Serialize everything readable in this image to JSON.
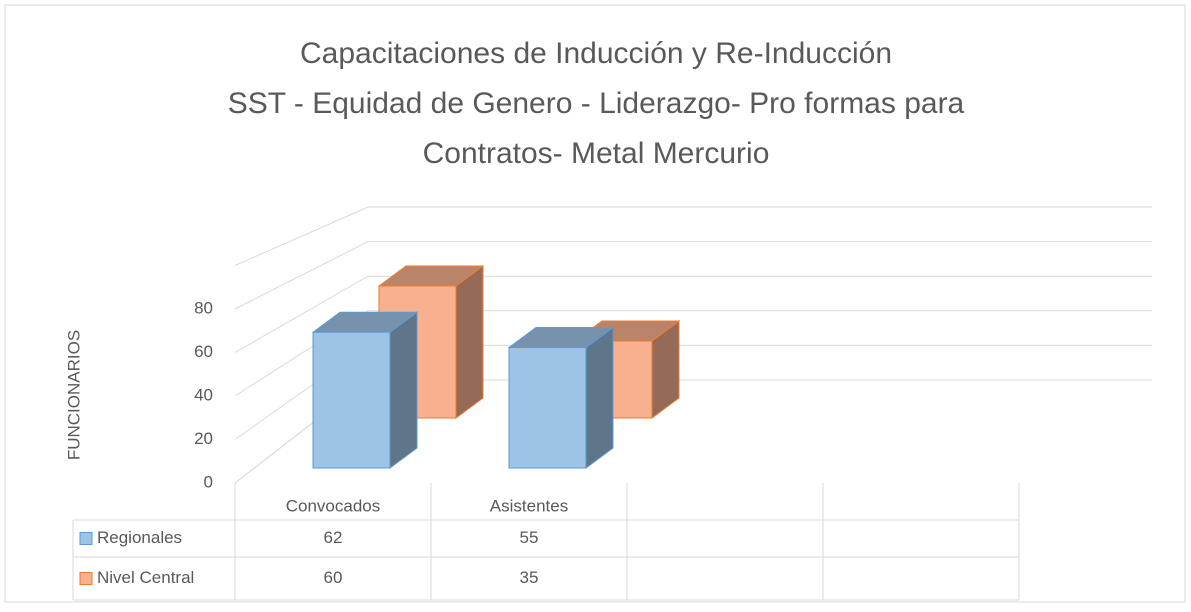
{
  "chart_data": {
    "type": "bar3d",
    "title": [
      "Capacitaciones de Inducción y Re-Inducción",
      "SST - Equidad de Genero - Liderazgo-  Pro formas para",
      "Contratos- Metal Mercurio"
    ],
    "y_label": "FUNCIONARIOS",
    "categories": [
      "Convocados",
      "Asistentes",
      null,
      null
    ],
    "series": [
      {
        "name": "Regionales",
        "color": "#9dc3e6",
        "values": [
          62,
          55,
          null,
          null
        ]
      },
      {
        "name": "Nivel Central",
        "color": "#f8b08f",
        "values": [
          60,
          35,
          null,
          null
        ]
      }
    ],
    "ylim": [
      0,
      100
    ],
    "yticks": [
      0,
      20,
      40,
      60,
      80
    ],
    "grid": true,
    "data_table": true
  }
}
